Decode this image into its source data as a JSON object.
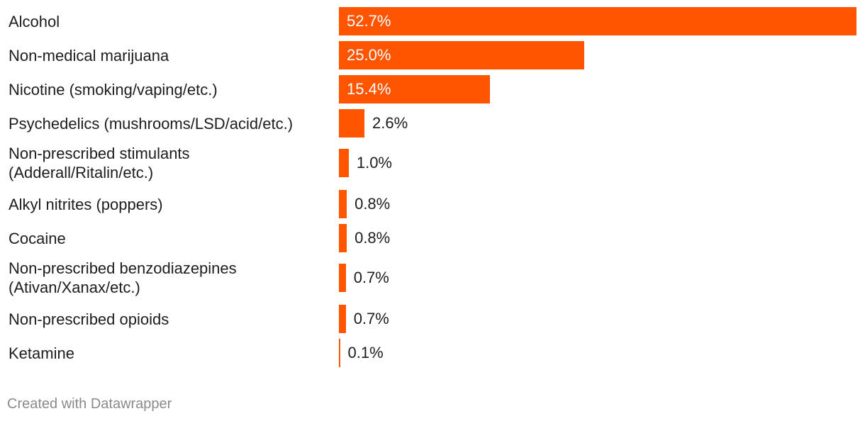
{
  "chart_data": {
    "type": "bar",
    "orientation": "horizontal",
    "title": "",
    "xlabel": "",
    "ylabel": "",
    "xlim": [
      0,
      52.7
    ],
    "grid": false,
    "legend": "none",
    "bar_color": "#ff5500",
    "categories": [
      "Alcohol",
      "Non-medical marijuana",
      "Nicotine (smoking/vaping/etc.)",
      "Psychedelics (mushrooms/LSD/acid/etc.)",
      "Non-prescribed stimulants\n(Adderall/Ritalin/etc.)",
      "Alkyl nitrites (poppers)",
      "Cocaine",
      "Non-prescribed benzodiazepines\n(Ativan/Xanax/etc.)",
      "Non-prescribed opioids",
      "Ketamine"
    ],
    "values": [
      52.7,
      25.0,
      15.4,
      2.6,
      1.0,
      0.8,
      0.8,
      0.7,
      0.7,
      0.1
    ],
    "value_labels": [
      "52.7%",
      "25.0%",
      "15.4%",
      "2.6%",
      "1.0%",
      "0.8%",
      "0.8%",
      "0.7%",
      "0.7%",
      "0.1%"
    ]
  },
  "footer": {
    "credit": "Created with Datawrapper"
  }
}
